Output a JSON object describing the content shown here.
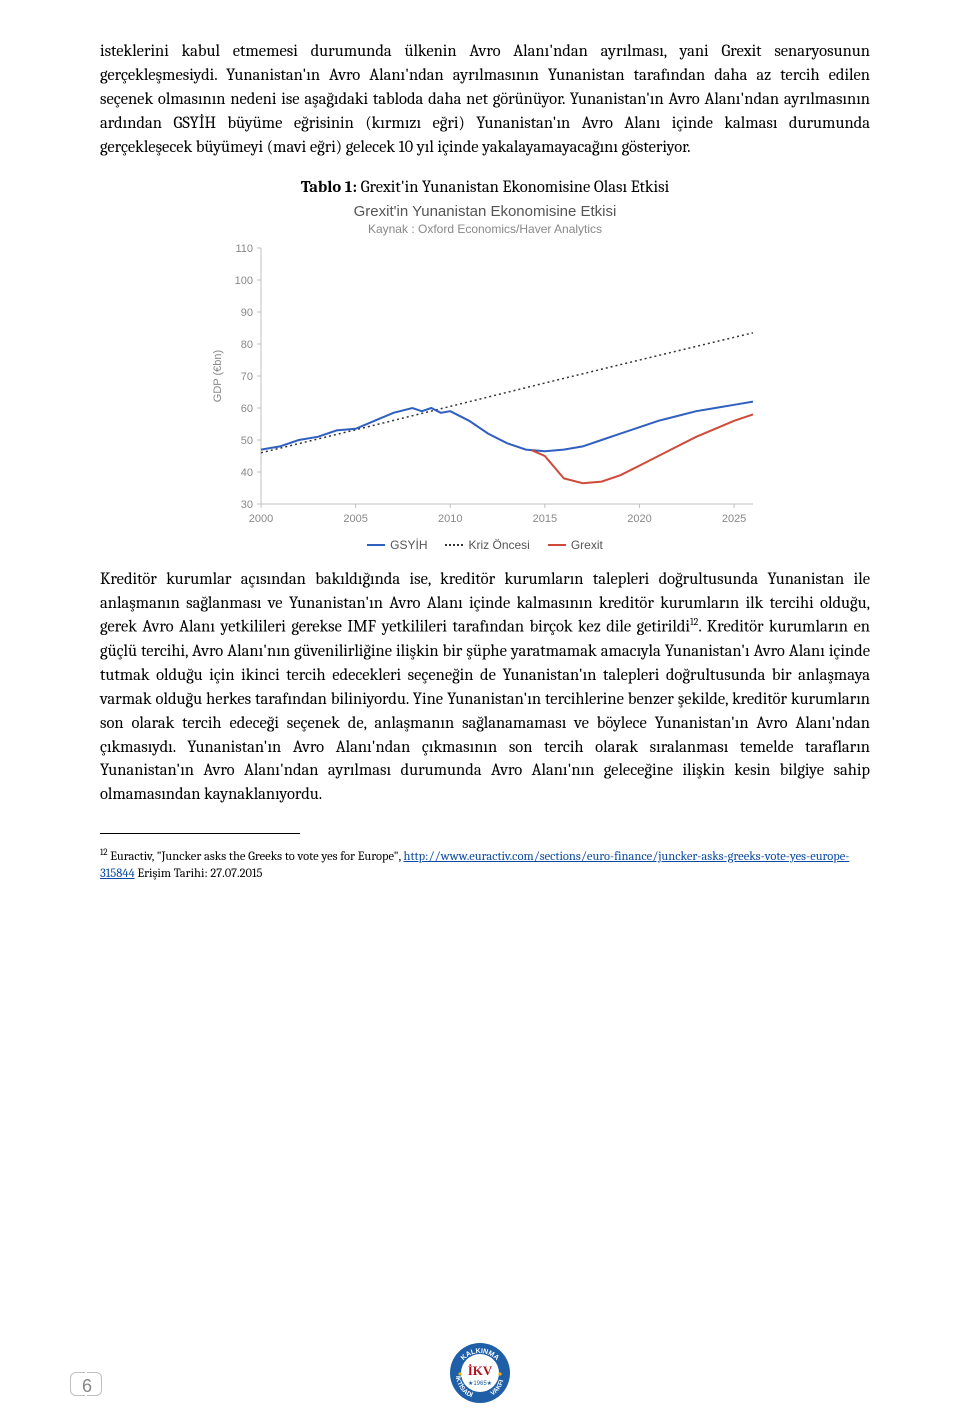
{
  "para1": "isteklerini kabul etmemesi durumunda ülkenin Avro Alanı'ndan ayrılması, yani Grexit senaryosunun gerçekleşmesiydi. Yunanistan'ın Avro Alanı'ndan ayrılmasının Yunanistan tarafından daha az tercih edilen seçenek olmasının nedeni ise aşağıdaki tabloda daha net görünüyor. Yunanistan'ın Avro Alanı'ndan ayrılmasının ardından GSYİH büyüme eğrisinin (kırmızı eğri) Yunanistan'ın Avro Alanı içinde kalması durumunda gerçekleşecek büyümeyi (mavi eğri) gelecek 10 yıl içinde yakalayamayacağını gösteriyor.",
  "table_caption_prefix": "Tablo 1: ",
  "table_caption_rest": "Grexit'in Yunanistan Ekonomisine Olası Etkisi",
  "chart": {
    "title": "Grexit'in Yunanistan Ekonomisine Etkisi",
    "subtitle": "Kaynak : Oxford Economics/Haver Analytics",
    "y_label": "GDP (€bn)",
    "x_ticks": [
      "2000",
      "2005",
      "2010",
      "2015",
      "2020",
      "2025"
    ],
    "y_ticks": [
      "30",
      "40",
      "50",
      "60",
      "70",
      "80",
      "90",
      "100",
      "110"
    ],
    "y_min": 30,
    "y_max": 110,
    "x_min": 2000,
    "x_max": 2026,
    "axis_color": "#bfbfbf",
    "tick_text_color": "#888888",
    "tick_fontsize": 11,
    "ylabel_fontsize": 11,
    "series": {
      "gsyih": {
        "label": "GSYİH",
        "color": "#2f5fbf",
        "width": 2,
        "data": [
          [
            2000,
            47
          ],
          [
            2001,
            48
          ],
          [
            2002,
            50
          ],
          [
            2003,
            51
          ],
          [
            2004,
            53
          ],
          [
            2005,
            53.5
          ],
          [
            2006,
            56
          ],
          [
            2007,
            58.5
          ],
          [
            2008,
            60
          ],
          [
            2008.5,
            59
          ],
          [
            2009,
            60
          ],
          [
            2009.5,
            58.5
          ],
          [
            2010,
            59
          ],
          [
            2011,
            56
          ],
          [
            2012,
            52
          ],
          [
            2013,
            49
          ],
          [
            2014,
            47
          ],
          [
            2015,
            46.5
          ],
          [
            2016,
            47
          ],
          [
            2017,
            48
          ],
          [
            2018,
            50
          ],
          [
            2019,
            52
          ],
          [
            2020,
            54
          ],
          [
            2021,
            56
          ],
          [
            2022,
            57.5
          ],
          [
            2023,
            59
          ],
          [
            2024,
            60
          ],
          [
            2025,
            61
          ],
          [
            2026,
            62
          ]
        ]
      },
      "kriz": {
        "label": "Kriz Öncesi",
        "color": "#333333",
        "dash": "2,3",
        "width": 1.5,
        "data": [
          [
            2000,
            46
          ],
          [
            2005,
            53.2
          ],
          [
            2010,
            60.5
          ],
          [
            2015,
            67.8
          ],
          [
            2020,
            75
          ],
          [
            2026,
            83.5
          ]
        ]
      },
      "grexit": {
        "label": "Grexit",
        "color": "#d04a3a",
        "width": 2,
        "data": [
          [
            2014.3,
            46.8
          ],
          [
            2015,
            45
          ],
          [
            2016,
            38
          ],
          [
            2017,
            36.5
          ],
          [
            2018,
            37
          ],
          [
            2019,
            39
          ],
          [
            2020,
            42
          ],
          [
            2021,
            45
          ],
          [
            2022,
            48
          ],
          [
            2023,
            51
          ],
          [
            2024,
            53.5
          ],
          [
            2025,
            56
          ],
          [
            2026,
            58
          ]
        ]
      }
    }
  },
  "para2_a": "Kreditör kurumlar açısından bakıldığında ise, kreditör kurumların talepleri doğrultusunda Yunanistan ile anlaşmanın sağlanması ve Yunanistan'ın Avro Alanı içinde kalmasının kreditör kurumların ilk tercihi olduğu, gerek Avro Alanı yetkilileri gerekse IMF yetkilileri tarafından birçok kez dile getirildi",
  "para2_sup": "12",
  "para2_b": ". Kreditör kurumların en güçlü tercihi, Avro Alanı'nın güvenilirliğine ilişkin bir şüphe yaratmamak amacıyla Yunanistan'ı Avro Alanı içinde tutmak olduğu için ikinci tercih edecekleri seçeneğin de Yunanistan'ın talepleri doğrultusunda bir anlaşmaya varmak olduğu herkes tarafından biliniyordu. Yine Yunanistan'ın tercihlerine benzer şekilde, kreditör kurumların son olarak tercih edeceği seçenek de, anlaşmanın sağlanamaması ve böylece Yunanistan'ın Avro Alanı'ndan çıkmasıydı. Yunanistan'ın Avro Alanı'ndan çıkmasının son tercih olarak sıralanması temelde tarafların Yunanistan'ın Avro Alanı'ndan ayrılması durumunda Avro Alanı'nın geleceğine ilişkin kesin bilgiye sahip olmamasından kaynaklanıyordu.",
  "footnote": {
    "sup": "12",
    "lead": " Euractiv, \"Juncker asks the Greeks to vote yes for Europe\", ",
    "url_text": "http://www.euractiv.com/sections/euro-finance/juncker-asks-greeks-vote-yes-europe-315844",
    "tail": " Erişim Tarihi: 27.07.2015"
  },
  "page_number": "6",
  "logo": {
    "outer_text_top": "KALKINMA",
    "outer_text_bottomL": "İKTİSADİ",
    "outer_text_bottomR": "VAKFI",
    "center": "İKV",
    "year": "★1965★",
    "colors": {
      "ring": "#1f5fa8",
      "inner": "#ffffff",
      "red": "#b0121b",
      "yellow": "#f2b100"
    }
  }
}
